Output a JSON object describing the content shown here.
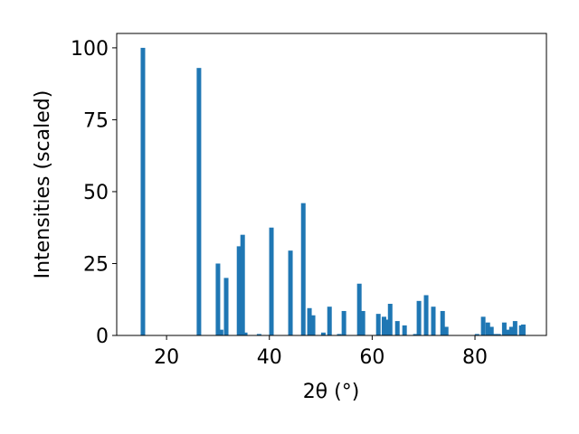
{
  "chart_data": {
    "type": "bar",
    "x_label": "2θ (°)",
    "y_label": "Intensities (scaled)",
    "x": [
      15.4,
      26.3,
      30.0,
      30.6,
      31.6,
      34.1,
      34.8,
      35.3,
      38.0,
      40.4,
      44.1,
      46.6,
      47.8,
      48.5,
      50.5,
      51.7,
      53.6,
      54.5,
      57.5,
      58.2,
      61.2,
      62.3,
      63.0,
      63.5,
      64.9,
      66.3,
      68.4,
      69.1,
      70.5,
      71.9,
      73.7,
      74.4,
      80.4,
      81.6,
      82.5,
      83.2,
      83.9,
      84.6,
      85.7,
      86.4,
      87.1,
      87.8,
      89.0,
      89.4
    ],
    "values": [
      100,
      93,
      25,
      2,
      20,
      31,
      35,
      1,
      0.5,
      37.5,
      29.5,
      46,
      9.5,
      7,
      1,
      10,
      0.5,
      8.5,
      18,
      8.5,
      7.5,
      6.5,
      5.5,
      11,
      5,
      3.5,
      0.5,
      12,
      14,
      10,
      8.5,
      3,
      0.5,
      6.5,
      4.5,
      3,
      0.5,
      0.5,
      4.5,
      2,
      3,
      5,
      3.5,
      3.8
    ],
    "color": "#1f77b4",
    "xlim": [
      10.3,
      93.9
    ],
    "xticks": [
      20,
      40,
      60,
      80
    ],
    "ylim": [
      0,
      105
    ],
    "yticks": [
      0,
      25,
      50,
      75,
      100
    ]
  }
}
